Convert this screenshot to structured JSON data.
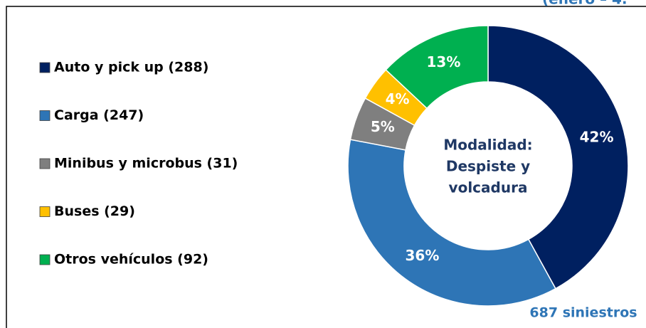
{
  "chart_data": {
    "type": "donut",
    "categories": [
      "Auto y pick up (288)",
      "Carga (247)",
      "Minibus y microbus (31)",
      "Buses (29)",
      "Otros vehículos (92)"
    ],
    "values": [
      42,
      36,
      5,
      4,
      13
    ],
    "value_labels": [
      "42%",
      "36%",
      "5%",
      "4%",
      "13%"
    ],
    "colors": [
      "#002060",
      "#2e75b6",
      "#7f7f7f",
      "#ffc000",
      "#00b050"
    ],
    "center_text": [
      "Modalidad:",
      "Despiste y",
      "volcadura"
    ],
    "annotation": "687 siniestros",
    "header_fragment": "(enero – 4.",
    "legend": "left"
  }
}
